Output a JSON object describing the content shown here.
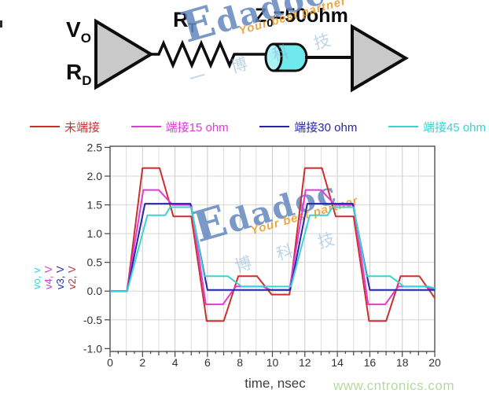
{
  "circuit": {
    "driver_top_label": {
      "main": "V",
      "sub": "O"
    },
    "driver_bottom_label": {
      "main": "R",
      "sub": "D"
    },
    "resistor_label": {
      "main": "R",
      "sub": "T"
    },
    "tline_label": {
      "main": "Z",
      "sub": "0",
      "rest": "=50ohm"
    },
    "colors": {
      "buffer_fill": "#c9c9c9",
      "outline": "#0d0d0d",
      "tline_fill": "#6fe9ec",
      "tline_cap_fill": "#aaf3f5"
    }
  },
  "watermarks": {
    "brand": "Edadoc",
    "tagline": "Your best partner",
    "cjk": "一 博 科 技",
    "cjk_chart": "博 科 技",
    "brand_color": "rgba(100,135,190,0.85)",
    "tagline_color": "rgba(232,160,48,0.9)",
    "cjk_color": "rgba(135,180,220,0.55)"
  },
  "footer": {
    "site": "www.cntronics.com",
    "site_color": "#b5d99f"
  },
  "chart_data": {
    "type": "line",
    "title": "",
    "xlabel": "time, nsec",
    "ylabel": "",
    "xlim": [
      0,
      20
    ],
    "ylim": [
      -1.05,
      2.52
    ],
    "xticks_labeled": [
      0,
      2,
      4,
      6,
      8,
      10,
      12,
      14,
      16,
      18,
      20
    ],
    "xtick_minor_step": 0.5,
    "yticks": [
      -1.0,
      -0.5,
      0.0,
      0.5,
      1.0,
      1.5,
      2.0,
      2.5
    ],
    "grid": true,
    "grid_color": "#d6d6d6",
    "border_color": "#5a5a5a",
    "legend_position": "top",
    "axis_labels_left": [
      {
        "label": "vo, v",
        "color": "#3bd2d2"
      },
      {
        "label": "v4, V",
        "color": "#d83bd8"
      },
      {
        "label": "v3, V",
        "color": "#2a2aa8"
      },
      {
        "label": "v2, V",
        "color": "#c23434"
      }
    ],
    "series": [
      {
        "name": "未端接",
        "color": "#cb2f2f",
        "points": [
          [
            0,
            0
          ],
          [
            1.05,
            0
          ],
          [
            2,
            2.14
          ],
          [
            3.05,
            2.14
          ],
          [
            3.9,
            1.3
          ],
          [
            5,
            1.3
          ],
          [
            5.95,
            -0.52
          ],
          [
            7,
            -0.52
          ],
          [
            7.9,
            0.26
          ],
          [
            9.05,
            0.26
          ],
          [
            9.95,
            -0.06
          ],
          [
            11.05,
            -0.06
          ],
          [
            12,
            2.14
          ],
          [
            13.05,
            2.14
          ],
          [
            13.9,
            1.3
          ],
          [
            15,
            1.3
          ],
          [
            15.95,
            -0.52
          ],
          [
            17,
            -0.52
          ],
          [
            17.9,
            0.26
          ],
          [
            19.05,
            0.26
          ],
          [
            19.8,
            -0.04
          ],
          [
            20,
            -0.12
          ]
        ]
      },
      {
        "name": "端接15 ohm",
        "color": "#e23ad8",
        "points": [
          [
            0,
            0
          ],
          [
            1.05,
            0
          ],
          [
            2.05,
            1.76
          ],
          [
            3,
            1.76
          ],
          [
            3.85,
            1.5
          ],
          [
            5,
            1.5
          ],
          [
            5.9,
            -0.23
          ],
          [
            6.95,
            -0.23
          ],
          [
            7.75,
            0.08
          ],
          [
            9.4,
            0.08
          ],
          [
            9.9,
            0.02
          ],
          [
            11.05,
            0.02
          ],
          [
            12.05,
            1.76
          ],
          [
            13,
            1.76
          ],
          [
            13.85,
            1.5
          ],
          [
            15,
            1.5
          ],
          [
            15.9,
            -0.23
          ],
          [
            16.95,
            -0.23
          ],
          [
            17.75,
            0.08
          ],
          [
            19.4,
            0.08
          ],
          [
            19.9,
            0.03
          ],
          [
            20,
            0.03
          ]
        ]
      },
      {
        "name": "端接30 ohm",
        "color": "#2626a8",
        "points": [
          [
            0,
            0
          ],
          [
            1.05,
            0
          ],
          [
            2.15,
            1.52
          ],
          [
            4.95,
            1.52
          ],
          [
            6,
            0.02
          ],
          [
            11.1,
            0.02
          ],
          [
            12.15,
            1.52
          ],
          [
            14.95,
            1.52
          ],
          [
            16,
            0.02
          ],
          [
            20,
            0.02
          ]
        ]
      },
      {
        "name": "端接45 ohm",
        "color": "#3bd2d2",
        "points": [
          [
            0,
            0
          ],
          [
            1.05,
            0
          ],
          [
            2.3,
            1.32
          ],
          [
            3.4,
            1.32
          ],
          [
            3.7,
            1.46
          ],
          [
            5,
            1.46
          ],
          [
            5.8,
            0.26
          ],
          [
            7.25,
            0.26
          ],
          [
            8.1,
            0.08
          ],
          [
            11.15,
            0.08
          ],
          [
            12.3,
            1.32
          ],
          [
            13.4,
            1.32
          ],
          [
            13.7,
            1.46
          ],
          [
            15,
            1.46
          ],
          [
            15.8,
            0.26
          ],
          [
            17.25,
            0.26
          ],
          [
            18.1,
            0.08
          ],
          [
            19.6,
            0.08
          ],
          [
            20,
            0.05
          ]
        ]
      }
    ]
  }
}
